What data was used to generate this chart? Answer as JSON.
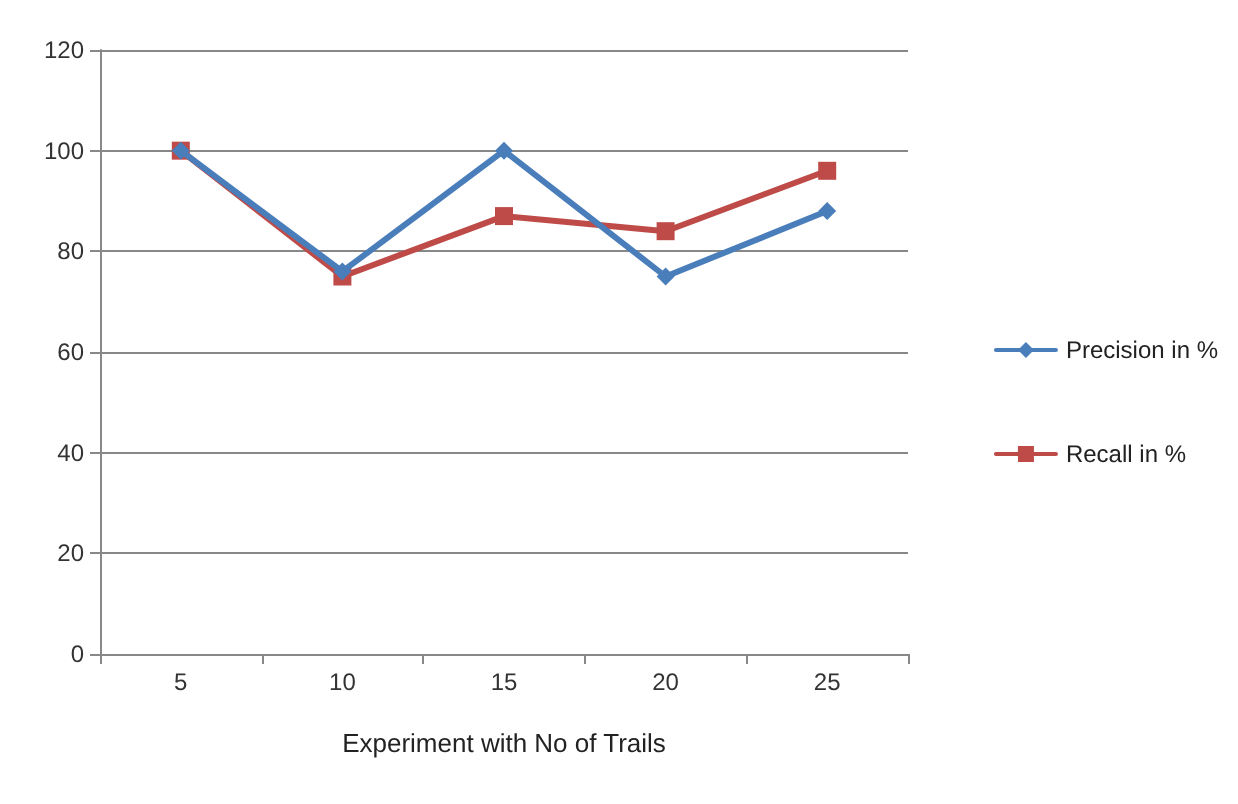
{
  "chart_data": {
    "type": "line",
    "xlabel": "Experiment with No of Trails",
    "categories": [
      "5",
      "10",
      "15",
      "20",
      "25"
    ],
    "series": [
      {
        "name": "Precision in %",
        "color": "#4a7ebb",
        "marker": "diamond",
        "values": [
          100,
          76,
          100,
          75,
          88
        ]
      },
      {
        "name": "Recall in %",
        "color": "#be4b48",
        "marker": "square",
        "values": [
          100,
          75,
          87,
          84,
          96
        ]
      }
    ],
    "ylim": [
      0,
      120
    ],
    "yticks": [
      0,
      20,
      40,
      60,
      80,
      100,
      120
    ],
    "grid": "y",
    "legend": "right"
  }
}
